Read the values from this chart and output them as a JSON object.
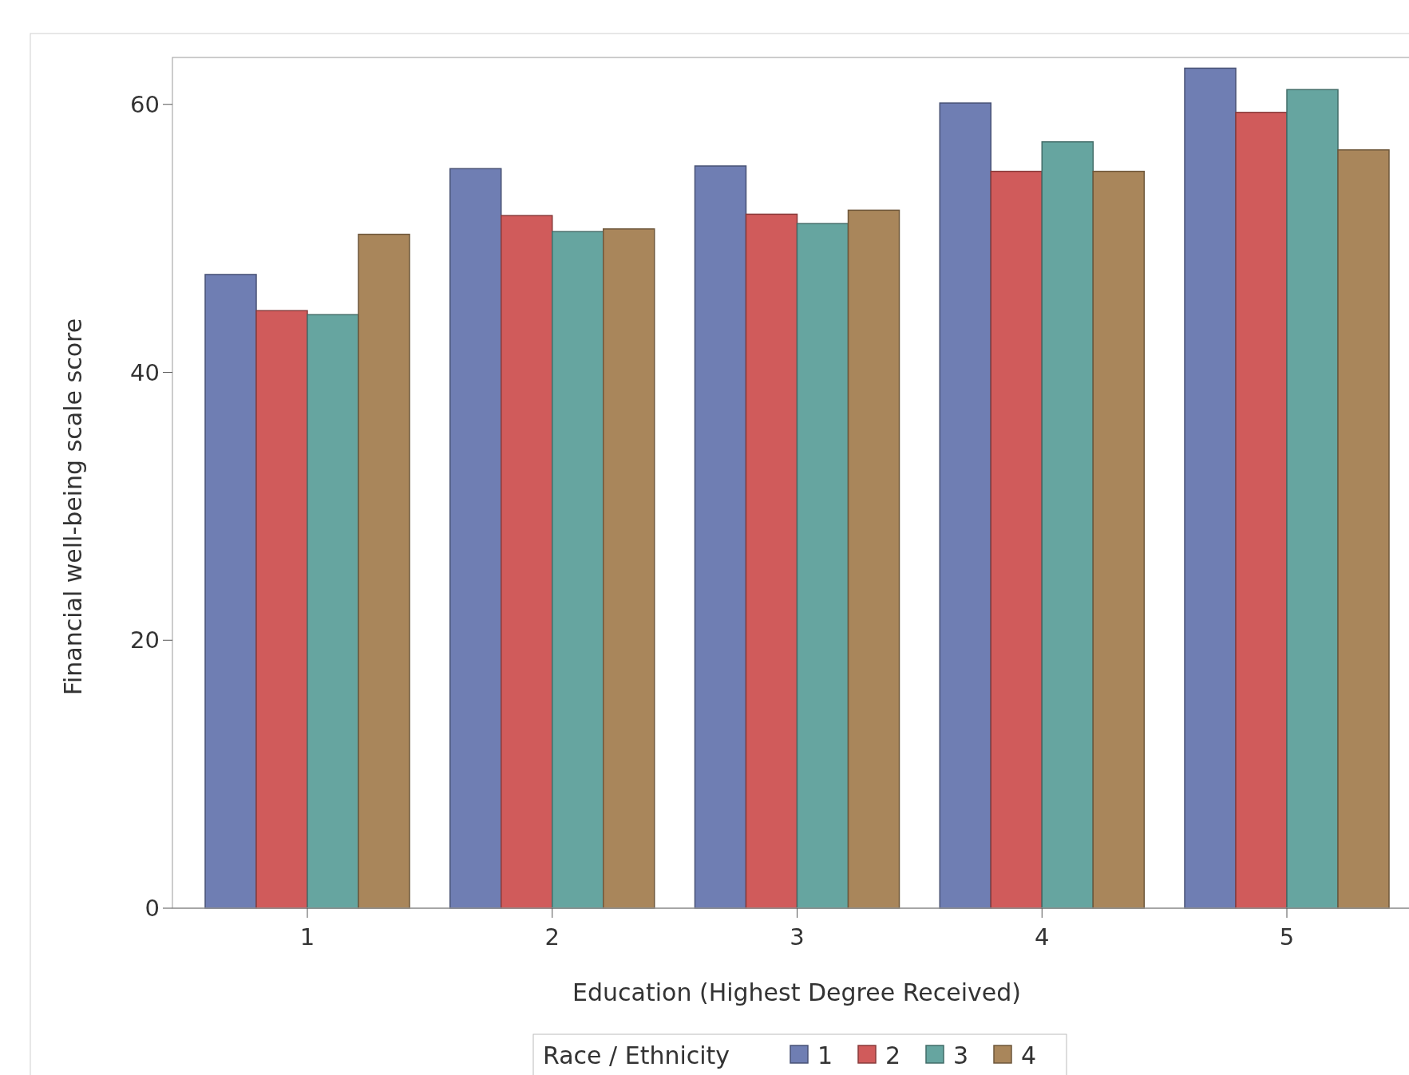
{
  "chart_data": {
    "type": "bar",
    "xlabel": "Education (Highest Degree Received)",
    "ylabel": "Financial well-being scale score",
    "legend_title": "Race / Ethnicity",
    "legend": "bottom",
    "categories": [
      "1",
      "2",
      "3",
      "4",
      "5"
    ],
    "ylim": [
      0,
      63.5
    ],
    "yticks": [
      0,
      20,
      40,
      60
    ],
    "grid": false,
    "series": [
      {
        "name": "1",
        "color": "#6f7eb3",
        "values": [
          47.3,
          55.2,
          55.4,
          60.1,
          62.7
        ]
      },
      {
        "name": "2",
        "color": "#d05b5b",
        "values": [
          44.6,
          51.7,
          51.8,
          55.0,
          59.4
        ]
      },
      {
        "name": "3",
        "color": "#66a5a0",
        "values": [
          44.3,
          50.5,
          51.1,
          57.2,
          61.1
        ]
      },
      {
        "name": "4",
        "color": "#a9865b",
        "values": [
          50.3,
          50.7,
          52.1,
          55.0,
          56.6
        ]
      }
    ]
  }
}
